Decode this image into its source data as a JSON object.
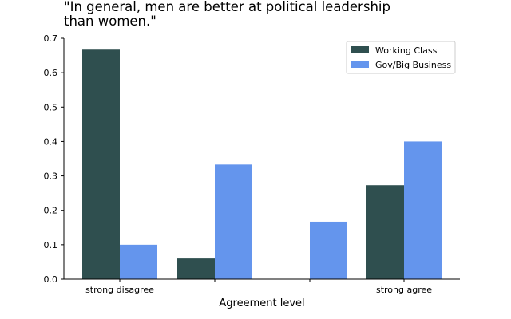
{
  "chart_data": {
    "type": "bar",
    "title": "\"In general, men are better at political leadership\nthan women.\"",
    "xlabel": "Agreement level",
    "ylabel": "",
    "categories": [
      "strong disagree",
      "",
      "",
      "strong agree"
    ],
    "series": [
      {
        "name": "Working Class",
        "color": "#2f4f4f",
        "values": [
          0.667,
          0.06,
          0.0,
          0.273
        ]
      },
      {
        "name": "Gov/Big Business",
        "color": "#6495ed",
        "values": [
          0.1,
          0.333,
          0.167,
          0.4
        ]
      }
    ],
    "ylim": [
      0,
      0.7
    ],
    "yticks": [
      "0.0",
      "0.1",
      "0.2",
      "0.3",
      "0.4",
      "0.5",
      "0.6",
      "0.7"
    ],
    "grid": false,
    "legend_position": "top-right"
  }
}
